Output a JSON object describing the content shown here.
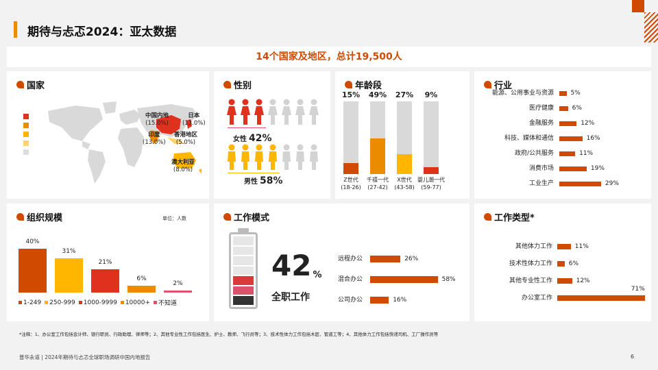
{
  "page": {
    "title": "期待与忐忑2024：亚太数据",
    "banner": "14个国家及地区，总计19,500人",
    "footnote": "*注释：1、办公室工作包括会计师、银行职员、行政助理、律师等；2、其他专业性工作包括医生、护士、教师、飞行员等；3、技术性体力工作包括木匠、管道工等；4、其他体力工作包括快递司机、工厂操作员等",
    "footer_left": "普华永道 | 2024年期待与忐忑全球职场调研中国内地报告",
    "page_number": "6"
  },
  "colors": {
    "accent": "#d04a02",
    "dark_orange": "#eb8c00",
    "yellow": "#ffb600",
    "red": "#e0301e",
    "rose": "#db536a"
  },
  "country": {
    "title": "国家",
    "legend_colors": [
      "#e0301e",
      "#eb8c00",
      "#ffb600",
      "#ffd36e",
      "#dedede"
    ],
    "labels": [
      {
        "name": "中国内地",
        "value": "(15.0%)"
      },
      {
        "name": "日本",
        "value": "(13.0%)"
      },
      {
        "name": "印度",
        "value": "(13.0%)"
      },
      {
        "name": "香港地区",
        "value": "(5.0%)"
      },
      {
        "name": "澳大利亚",
        "value": "(8.0%)"
      }
    ]
  },
  "gender": {
    "title": "性别",
    "female_label": "女性",
    "female_value": "42%",
    "female_fraction": 0.42,
    "male_label": "男性",
    "male_value": "58%",
    "male_fraction": 0.58
  },
  "age": {
    "title": "年龄段",
    "groups": [
      {
        "pct": "15%",
        "fraction": 0.15,
        "name": "Z世代",
        "range": "(18-26)",
        "color": "#d04a02"
      },
      {
        "pct": "49%",
        "fraction": 0.49,
        "name": "千禧一代",
        "range": "(27-42)",
        "color": "#eb8c00"
      },
      {
        "pct": "27%",
        "fraction": 0.27,
        "name": "X世代",
        "range": "(43-58)",
        "color": "#ffb600"
      },
      {
        "pct": "9%",
        "fraction": 0.09,
        "name": "婴儿潮一代",
        "range": "(59-77)",
        "color": "#e0301e"
      }
    ]
  },
  "industry": {
    "title": "行业",
    "items": [
      {
        "name": "能源、公用事业与资源",
        "label": "5%",
        "value": 5
      },
      {
        "name": "医疗健康",
        "label": "6%",
        "value": 6
      },
      {
        "name": "金融服务",
        "label": "12%",
        "value": 12
      },
      {
        "name": "科技、媒体和通信",
        "label": "16%",
        "value": 16
      },
      {
        "name": "政府/公共服务",
        "label": "11%",
        "value": 11
      },
      {
        "name": "消费市场",
        "label": "19%",
        "value": 19
      },
      {
        "name": "工业生产",
        "label": "29%",
        "value": 29
      }
    ]
  },
  "org_size": {
    "title": "组织规模",
    "unit": "单位：人数",
    "items": [
      {
        "label": "40%",
        "value": 40,
        "legend": "1-249",
        "color": "#d04a02"
      },
      {
        "label": "31%",
        "value": 31,
        "legend": "250-999",
        "color": "#ffb600"
      },
      {
        "label": "21%",
        "value": 21,
        "legend": "1000-9999",
        "color": "#e0301e"
      },
      {
        "label": "6%",
        "value": 6,
        "legend": "10000+",
        "color": "#eb8c00"
      },
      {
        "label": "2%",
        "value": 2,
        "legend": "不知道",
        "color": "#db536a"
      }
    ]
  },
  "work_mode": {
    "title": "工作模式",
    "big_value": "42",
    "big_unit": "%",
    "big_label": "全职工作",
    "items": [
      {
        "name": "远程办公",
        "label": "26%",
        "value": 26
      },
      {
        "name": "混合办公",
        "label": "58%",
        "value": 58
      },
      {
        "name": "公司办公",
        "label": "16%",
        "value": 16
      }
    ]
  },
  "work_type": {
    "title": "工作类型*",
    "items": [
      {
        "name": "其他体力工作",
        "label": "11%",
        "value": 11
      },
      {
        "name": "技术性体力工作",
        "label": "6%",
        "value": 6
      },
      {
        "name": "其他专业性工作",
        "label": "12%",
        "value": 12
      },
      {
        "name": "办公室工作",
        "label": "71%",
        "value": 71
      }
    ]
  }
}
